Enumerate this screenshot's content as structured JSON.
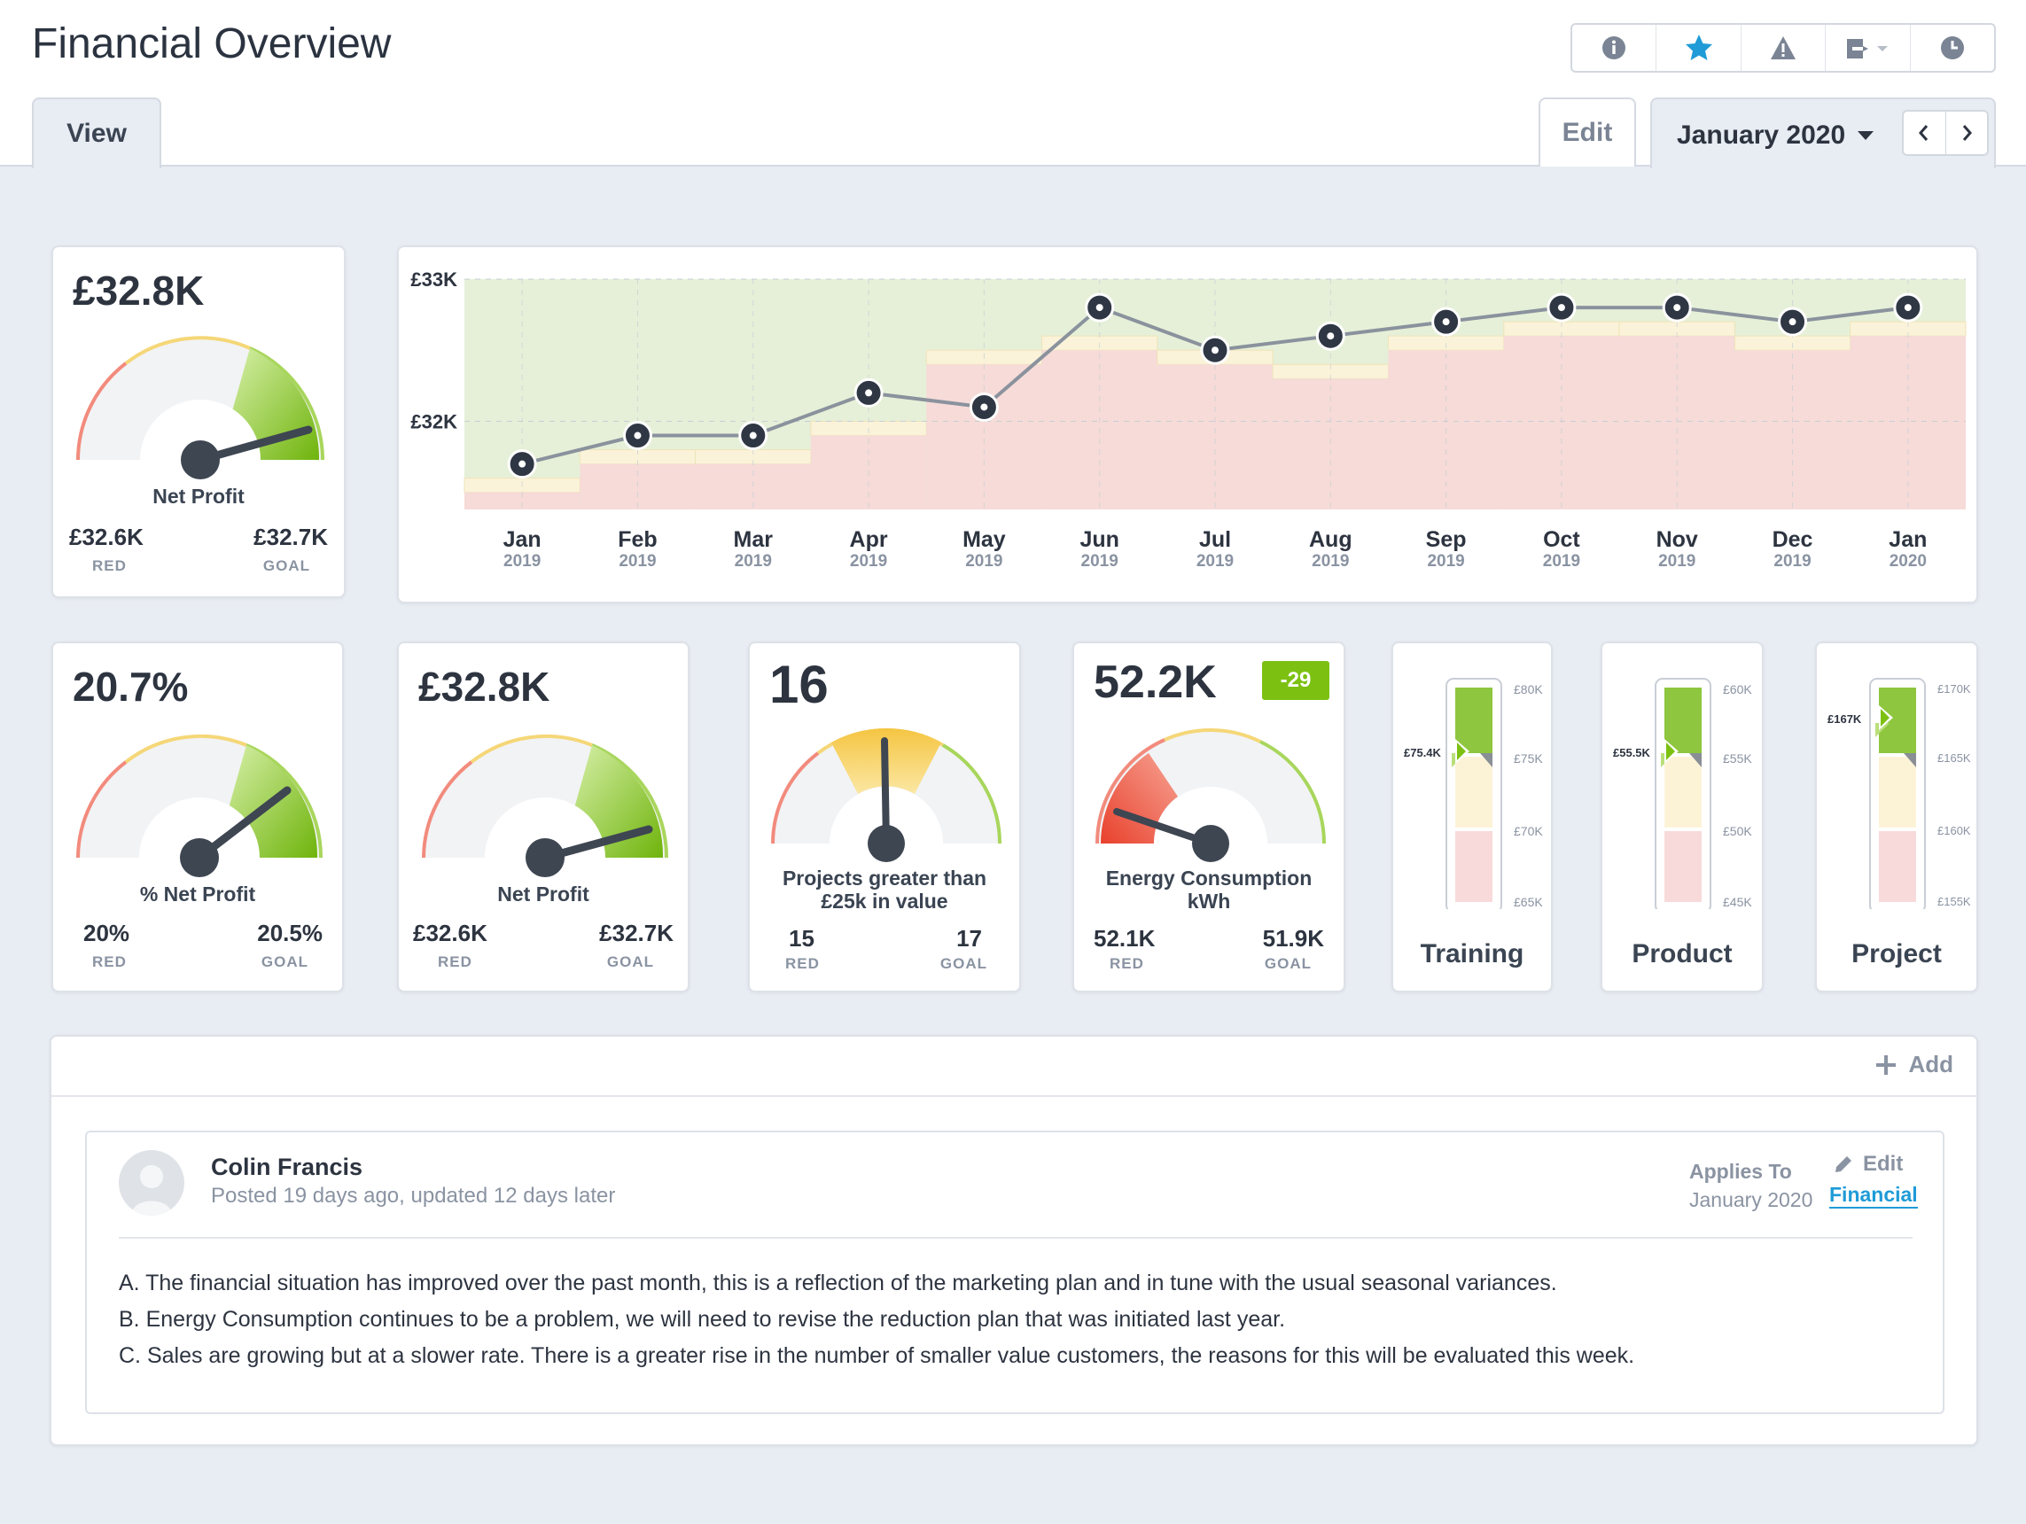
{
  "header": {
    "title": "Financial Overview",
    "toolbar_icons": [
      "info-icon",
      "star-icon",
      "warning-icon",
      "export-icon",
      "history-icon"
    ],
    "tab_view": "View",
    "edit_label": "Edit",
    "period": "January 2020"
  },
  "colors": {
    "green": "#7cc112",
    "amber": "#f5c542",
    "red": "#ee5a45",
    "link": "#1f9bd7"
  },
  "kpi_net_profit_top": {
    "value": "£32.8K",
    "label": "Net Profit",
    "red_value": "£32.6K",
    "red_caption": "RED",
    "goal_value": "£32.7K",
    "goal_caption": "GOAL"
  },
  "kpi_pct_net_profit": {
    "value": "20.7%",
    "label": "% Net Profit",
    "red_value": "20%",
    "red_caption": "RED",
    "goal_value": "20.5%",
    "goal_caption": "GOAL"
  },
  "kpi_net_profit": {
    "value": "£32.8K",
    "label": "Net Profit",
    "red_value": "£32.6K",
    "red_caption": "RED",
    "goal_value": "£32.7K",
    "goal_caption": "GOAL"
  },
  "kpi_projects": {
    "value": "16",
    "label_line1": "Projects greater than",
    "label_line2": "£25k in value",
    "red_value": "15",
    "red_caption": "RED",
    "goal_value": "17",
    "goal_caption": "GOAL"
  },
  "kpi_energy": {
    "value": "52.2K",
    "badge": "-29",
    "label_line1": "Energy Consumption",
    "label_line2": "kWh",
    "red_value": "52.1K",
    "red_caption": "RED",
    "goal_value": "51.9K",
    "goal_caption": "GOAL"
  },
  "bar_training": {
    "title": "Training",
    "marker": "£75.4K",
    "ticks": [
      "£80K",
      "£75K",
      "£70K",
      "£65K"
    ],
    "level": 0.72
  },
  "bar_product": {
    "title": "Product",
    "marker": "£55.5K",
    "ticks": [
      "£60K",
      "£55K",
      "£50K",
      "£45K"
    ],
    "level": 0.72
  },
  "bar_project": {
    "title": "Project",
    "marker": "£167K",
    "ticks": [
      "£170K",
      "£165K",
      "£160K",
      "£155K"
    ],
    "level": 0.85
  },
  "chart_data": {
    "type": "line",
    "x": [
      "Jan 2019",
      "Feb 2019",
      "Mar 2019",
      "Apr 2019",
      "May 2019",
      "Jun 2019",
      "Jul 2019",
      "Aug 2019",
      "Sep 2019",
      "Oct 2019",
      "Nov 2019",
      "Dec 2019",
      "Jan 2020"
    ],
    "x_months": [
      "Jan",
      "Feb",
      "Mar",
      "Apr",
      "May",
      "Jun",
      "Jul",
      "Aug",
      "Sep",
      "Oct",
      "Nov",
      "Dec",
      "Jan"
    ],
    "x_years": [
      "2019",
      "2019",
      "2019",
      "2019",
      "2019",
      "2019",
      "2019",
      "2019",
      "2019",
      "2019",
      "2019",
      "2019",
      "2020"
    ],
    "values": [
      31.7,
      31.9,
      31.9,
      32.2,
      32.1,
      32.8,
      32.5,
      32.6,
      32.7,
      32.8,
      32.8,
      32.7,
      32.8
    ],
    "red_thresholds": [
      31.5,
      31.7,
      31.7,
      31.9,
      32.4,
      32.5,
      32.4,
      32.3,
      32.5,
      32.6,
      32.6,
      32.5,
      32.6
    ],
    "goal_thresholds": [
      31.6,
      31.8,
      31.8,
      32.0,
      32.5,
      32.6,
      32.5,
      32.4,
      32.6,
      32.7,
      32.7,
      32.6,
      32.7
    ],
    "yticks": [
      "£33K",
      "£32K"
    ],
    "ylim": [
      31.38,
      33.0
    ],
    "grid": true
  },
  "comments": {
    "add_label": "Add",
    "author": "Colin Francis",
    "posted": "Posted 19 days ago, updated 12 days later",
    "applies_label": "Applies To",
    "applies_period": "January 2020",
    "edit_label": "Edit",
    "link_label": "Financial",
    "body_a": "A. The financial situation has improved over the past month, this is a reflection of the marketing plan and in tune with the usual seasonal variances.",
    "body_b": "B. Energy Consumption continues to be a problem, we will need to revise the reduction plan that was initiated last year.",
    "body_c": "C. Sales are growing but at a slower rate. There is a greater rise in the number of smaller value customers, the reasons for this will be evaluated this week."
  }
}
